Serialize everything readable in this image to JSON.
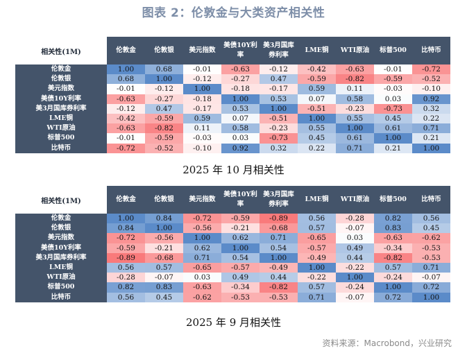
{
  "title": "图表 2：伦敦金与大类资产相关性",
  "corner_label": "相关性(1M)",
  "assets": [
    "伦敦金",
    "伦敦银",
    "美元指数",
    "美债10Y利率",
    "美3月国库券利率",
    "LME铜",
    "WTI原油",
    "标普500",
    "比特币"
  ],
  "col_headers": [
    "伦敦金",
    "伦敦银",
    "美元指数",
    "美债10Y利\n率",
    "美3月国库\n券利率",
    "LME铜",
    "WTI原油",
    "标普500",
    "比特币"
  ],
  "colors": {
    "header_bg": "#44546a",
    "positive": "#5b8bc9",
    "negative": "#f8696b",
    "neutral": "#ffffff"
  },
  "tables": [
    {
      "caption": "2025 年 10 月相关性",
      "matrix": [
        [
          "1.00",
          "0.68",
          "-0.01",
          "-0.63",
          "-0.12",
          "-0.42",
          "-0.63",
          "-0.01",
          "-0.72"
        ],
        [
          "0.68",
          "1.00",
          "-0.12",
          "-0.27",
          "0.47",
          "-0.59",
          "-0.82",
          "-0.59",
          "-0.52"
        ],
        [
          "-0.01",
          "-0.12",
          "1.00",
          "-0.18",
          "-0.17",
          "0.59",
          "0.11",
          "-0.03",
          "-0.10"
        ],
        [
          "-0.63",
          "-0.27",
          "-0.18",
          "1.00",
          "0.53",
          "0.07",
          "0.58",
          "0.03",
          "0.92"
        ],
        [
          "-0.12",
          "0.47",
          "-0.17",
          "0.53",
          "1.00",
          "-0.51",
          "-0.23",
          "-0.73",
          "0.32"
        ],
        [
          "-0.42",
          "-0.59",
          "0.59",
          "0.07",
          "-0.51",
          "1.00",
          "0.55",
          "0.45",
          "0.22"
        ],
        [
          "-0.63",
          "-0.82",
          "0.11",
          "0.58",
          "-0.23",
          "0.55",
          "1.00",
          "0.61",
          "0.71"
        ],
        [
          "-0.01",
          "-0.59",
          "-0.03",
          "0.03",
          "-0.73",
          "0.45",
          "0.61",
          "1.00",
          "0.21"
        ],
        [
          "-0.72",
          "-0.52",
          "-0.10",
          "0.92",
          "0.32",
          "0.22",
          "0.71",
          "0.21",
          "1.00"
        ]
      ]
    },
    {
      "caption": "2025 年 9 月相关性",
      "matrix": [
        [
          "1.00",
          "0.84",
          "-0.72",
          "-0.59",
          "-0.89",
          "0.56",
          "-0.28",
          "0.82",
          "0.56"
        ],
        [
          "0.84",
          "1.00",
          "-0.56",
          "-0.21",
          "-0.68",
          "0.57",
          "-0.07",
          "0.83",
          "0.45"
        ],
        [
          "-0.72",
          "-0.56",
          "1.00",
          "0.62",
          "0.71",
          "-0.65",
          "0.03",
          "-0.63",
          "-0.62"
        ],
        [
          "-0.59",
          "-0.21",
          "0.62",
          "1.00",
          "0.54",
          "-0.57",
          "0.49",
          "-0.34",
          "-0.53"
        ],
        [
          "-0.89",
          "-0.68",
          "0.71",
          "0.54",
          "1.00",
          "-0.49",
          "0.44",
          "-0.82",
          "-0.53"
        ],
        [
          "0.56",
          "0.57",
          "-0.65",
          "-0.57",
          "-0.49",
          "1.00",
          "-0.22",
          "0.57",
          "0.71"
        ],
        [
          "-0.28",
          "-0.07",
          "0.03",
          "0.49",
          "0.44",
          "-0.22",
          "1.00",
          "-0.24",
          "-0.07"
        ],
        [
          "0.82",
          "0.83",
          "-0.63",
          "-0.34",
          "-0.82",
          "0.57",
          "-0.24",
          "1.00",
          "0.72"
        ],
        [
          "0.56",
          "0.45",
          "-0.62",
          "-0.53",
          "-0.53",
          "0.71",
          "-0.07",
          "0.72",
          "1.00"
        ]
      ]
    }
  ],
  "source": "资料来源：Macrobond，兴业研究"
}
